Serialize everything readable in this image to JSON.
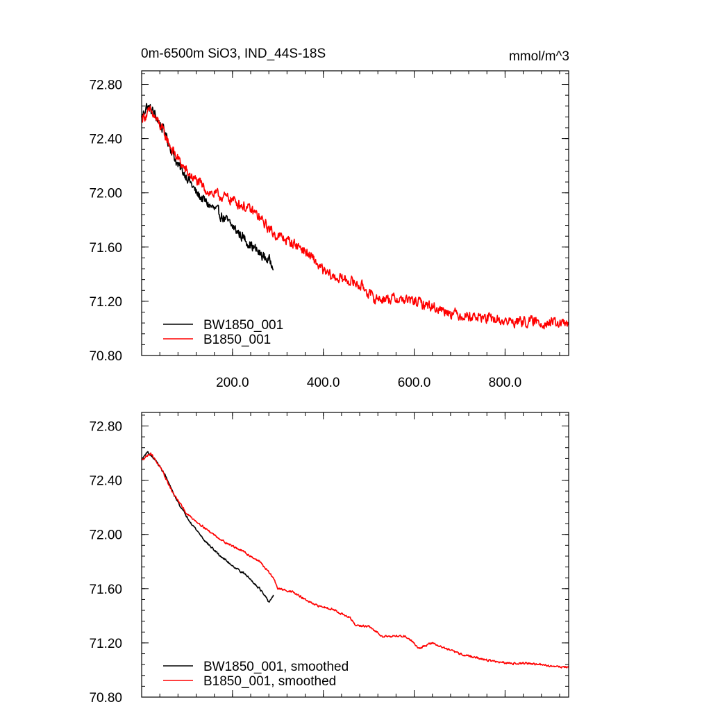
{
  "chart_data": [
    {
      "type": "line",
      "title": "0m-6500m SiO3, IND_44S-18S",
      "units": "mmol/m^3",
      "xlim": [
        0,
        940
      ],
      "ylim": [
        70.8,
        72.9
      ],
      "x_tick_labels": [
        "200.0",
        "400.0",
        "600.0",
        "800.0"
      ],
      "x_ticks": [
        200,
        400,
        600,
        800
      ],
      "y_tick_labels": [
        "72.80",
        "72.40",
        "72.00",
        "71.60",
        "71.20",
        "70.80"
      ],
      "y_ticks": [
        72.8,
        72.4,
        72.0,
        71.6,
        71.2,
        70.8
      ],
      "legend_position": "bottom-left",
      "series": [
        {
          "name": "BW1850_001",
          "color": "#000000",
          "x_start": 0,
          "x_end": 290,
          "noise": 0.06,
          "anchors": [
            [
              0,
              72.55
            ],
            [
              10,
              72.64
            ],
            [
              25,
              72.6
            ],
            [
              50,
              72.45
            ],
            [
              80,
              72.2
            ],
            [
              100,
              72.12
            ],
            [
              120,
              72.0
            ],
            [
              145,
              71.92
            ],
            [
              170,
              71.85
            ],
            [
              200,
              71.75
            ],
            [
              230,
              71.65
            ],
            [
              260,
              71.55
            ],
            [
              280,
              71.5
            ],
            [
              290,
              71.48
            ]
          ]
        },
        {
          "name": "B1850_001",
          "color": "#ff0000",
          "x_start": 0,
          "x_end": 940,
          "noise": 0.06,
          "anchors": [
            [
              0,
              72.55
            ],
            [
              20,
              72.6
            ],
            [
              40,
              72.5
            ],
            [
              70,
              72.3
            ],
            [
              100,
              72.15
            ],
            [
              150,
              72.0
            ],
            [
              200,
              71.95
            ],
            [
              250,
              71.85
            ],
            [
              290,
              71.7
            ],
            [
              320,
              71.65
            ],
            [
              350,
              71.6
            ],
            [
              380,
              71.5
            ],
            [
              400,
              71.42
            ],
            [
              420,
              71.38
            ],
            [
              460,
              71.35
            ],
            [
              490,
              71.3
            ],
            [
              510,
              71.22
            ],
            [
              560,
              71.22
            ],
            [
              600,
              71.2
            ],
            [
              650,
              71.15
            ],
            [
              700,
              71.1
            ],
            [
              750,
              71.08
            ],
            [
              800,
              71.05
            ],
            [
              850,
              71.05
            ],
            [
              900,
              71.04
            ],
            [
              940,
              71.03
            ]
          ]
        }
      ]
    },
    {
      "type": "line",
      "xlim": [
        0,
        940
      ],
      "ylim": [
        70.8,
        72.9
      ],
      "x_ticks": [
        200,
        400,
        600,
        800
      ],
      "y_tick_labels": [
        "72.80",
        "72.40",
        "72.00",
        "71.60",
        "71.20",
        "70.80"
      ],
      "y_ticks": [
        72.8,
        72.4,
        72.0,
        71.6,
        71.2,
        70.8
      ],
      "legend_position": "bottom-left",
      "series": [
        {
          "name": "BW1850_001, smoothed",
          "color": "#000000",
          "x_start": 0,
          "x_end": 290,
          "noise": 0.012,
          "anchors": [
            [
              0,
              72.55
            ],
            [
              12,
              72.61
            ],
            [
              30,
              72.55
            ],
            [
              50,
              72.45
            ],
            [
              70,
              72.3
            ],
            [
              90,
              72.18
            ],
            [
              110,
              72.08
            ],
            [
              140,
              71.95
            ],
            [
              170,
              71.85
            ],
            [
              200,
              71.77
            ],
            [
              230,
              71.7
            ],
            [
              260,
              71.6
            ],
            [
              280,
              71.5
            ],
            [
              290,
              71.55
            ]
          ]
        },
        {
          "name": "B1850_001, smoothed",
          "color": "#ff0000",
          "x_start": 0,
          "x_end": 940,
          "noise": 0.012,
          "anchors": [
            [
              0,
              72.55
            ],
            [
              20,
              72.6
            ],
            [
              40,
              72.5
            ],
            [
              70,
              72.3
            ],
            [
              100,
              72.15
            ],
            [
              150,
              72.02
            ],
            [
              180,
              71.95
            ],
            [
              220,
              71.88
            ],
            [
              260,
              71.8
            ],
            [
              290,
              71.68
            ],
            [
              300,
              71.6
            ],
            [
              330,
              71.58
            ],
            [
              380,
              71.48
            ],
            [
              420,
              71.45
            ],
            [
              460,
              71.38
            ],
            [
              470,
              71.33
            ],
            [
              500,
              71.32
            ],
            [
              530,
              71.25
            ],
            [
              580,
              71.25
            ],
            [
              600,
              71.2
            ],
            [
              610,
              71.16
            ],
            [
              640,
              71.2
            ],
            [
              660,
              71.17
            ],
            [
              700,
              71.12
            ],
            [
              750,
              71.08
            ],
            [
              800,
              71.05
            ],
            [
              850,
              71.05
            ],
            [
              900,
              71.03
            ],
            [
              940,
              71.02
            ]
          ]
        }
      ]
    }
  ]
}
